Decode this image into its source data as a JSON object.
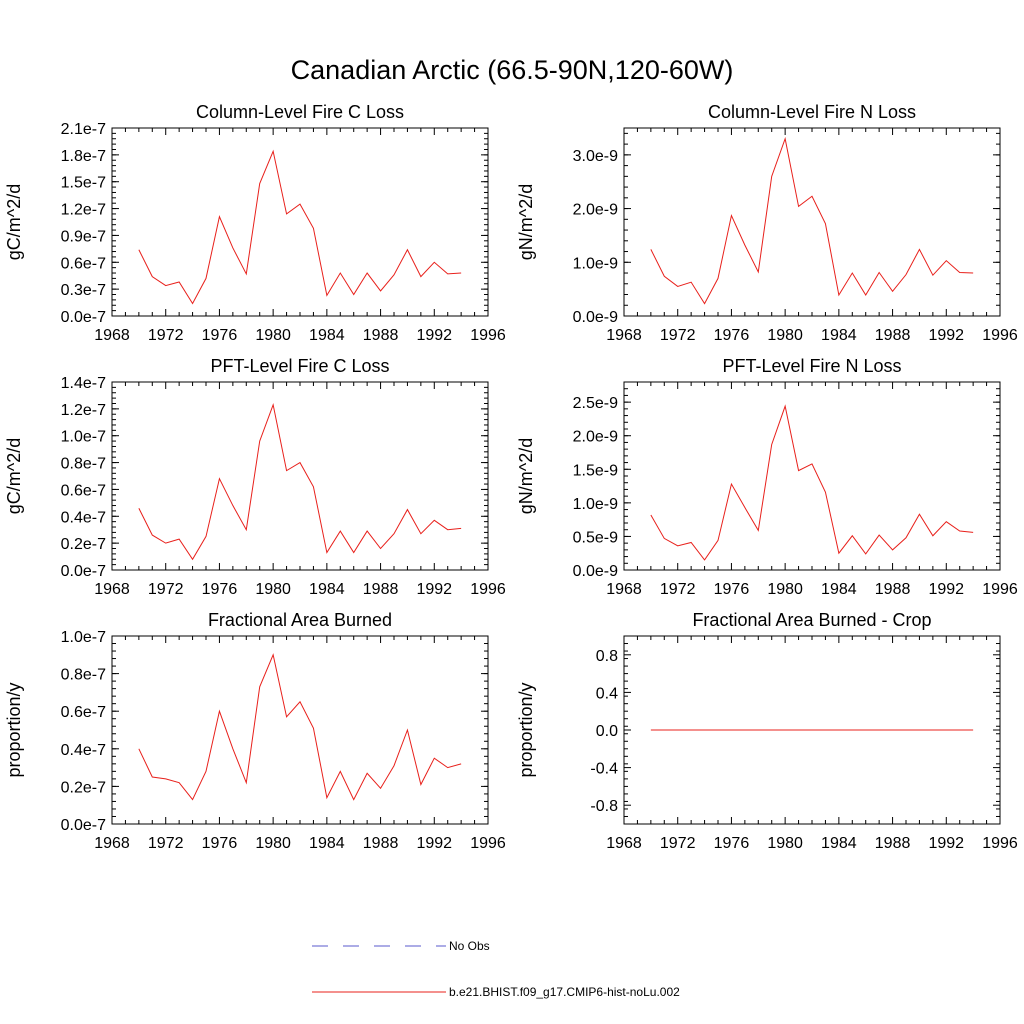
{
  "title": "Canadian Arctic (66.5-90N,120-60W)",
  "colors": {
    "model": "#e8201b",
    "obs": "#5a5acd",
    "axis": "#000000"
  },
  "legend": [
    {
      "label": "No Obs",
      "style": "dashed",
      "color": "#5a5acd"
    },
    {
      "label": "b.e21.BHIST.f09_g17.CMIP6-hist-noLu.002",
      "style": "solid",
      "color": "#e8201b"
    }
  ],
  "chart_data": [
    {
      "type": "line",
      "title": "Column-Level Fire C Loss",
      "ylabel": "gC/m^2/d",
      "xlim": [
        1968,
        1996
      ],
      "xticks": [
        "1968",
        "1972",
        "1976",
        "1980",
        "1984",
        "1988",
        "1992",
        "1996"
      ],
      "ylim": [
        0,
        2.1e-07
      ],
      "yticks": [
        "0.0e-7",
        "0.3e-7",
        "0.6e-7",
        "0.9e-7",
        "1.2e-7",
        "1.5e-7",
        "1.8e-7",
        "2.1e-7"
      ],
      "x": [
        1970,
        1971,
        1972,
        1973,
        1974,
        1975,
        1976,
        1977,
        1978,
        1979,
        1980,
        1981,
        1982,
        1983,
        1984,
        1985,
        1986,
        1987,
        1988,
        1989,
        1990,
        1991,
        1992,
        1993,
        1994
      ],
      "series": [
        {
          "name": "b.e21.BHIST.f09_g17.CMIP6-hist-noLu.002",
          "values": [
            7.4e-08,
            4.4e-08,
            3.4e-08,
            3.8e-08,
            1.4e-08,
            4.2e-08,
            1.11e-07,
            7.6e-08,
            4.7e-08,
            1.48e-07,
            1.84e-07,
            1.14e-07,
            1.25e-07,
            9.8e-08,
            2.3e-08,
            4.8e-08,
            2.4e-08,
            4.8e-08,
            2.8e-08,
            4.6e-08,
            7.4e-08,
            4.4e-08,
            6e-08,
            4.7e-08,
            4.8e-08
          ]
        }
      ]
    },
    {
      "type": "line",
      "title": "Column-Level Fire N Loss",
      "ylabel": "gN/m^2/d",
      "xlim": [
        1968,
        1996
      ],
      "xticks": [
        "1968",
        "1972",
        "1976",
        "1980",
        "1984",
        "1988",
        "1992",
        "1996"
      ],
      "ylim": [
        0,
        3.5e-09
      ],
      "yticks": [
        "0.0e-9",
        "1.0e-9",
        "2.0e-9",
        "3.0e-9"
      ],
      "ytickvals": [
        0,
        1e-09,
        2e-09,
        3e-09
      ],
      "x": [
        1970,
        1971,
        1972,
        1973,
        1974,
        1975,
        1976,
        1977,
        1978,
        1979,
        1980,
        1981,
        1982,
        1983,
        1984,
        1985,
        1986,
        1987,
        1988,
        1989,
        1990,
        1991,
        1992,
        1993,
        1994
      ],
      "series": [
        {
          "name": "b.e21.BHIST.f09_g17.CMIP6-hist-noLu.002",
          "values": [
            1.24e-09,
            7.4e-10,
            5.5e-10,
            6.3e-10,
            2.3e-10,
            7e-10,
            1.87e-09,
            1.32e-09,
            8.2e-10,
            2.6e-09,
            3.3e-09,
            2.04e-09,
            2.23e-09,
            1.72e-09,
            3.9e-10,
            8e-10,
            3.9e-10,
            8.1e-10,
            4.6e-10,
            7.7e-10,
            1.24e-09,
            7.6e-10,
            1.03e-09,
            8.1e-10,
            8e-10
          ]
        }
      ]
    },
    {
      "type": "line",
      "title": "PFT-Level Fire C Loss",
      "ylabel": "gC/m^2/d",
      "xlim": [
        1968,
        1996
      ],
      "xticks": [
        "1968",
        "1972",
        "1976",
        "1980",
        "1984",
        "1988",
        "1992",
        "1996"
      ],
      "ylim": [
        0,
        1.4e-07
      ],
      "yticks": [
        "0.0e-7",
        "0.2e-7",
        "0.4e-7",
        "0.6e-7",
        "0.8e-7",
        "1.0e-7",
        "1.2e-7",
        "1.4e-7"
      ],
      "x": [
        1970,
        1971,
        1972,
        1973,
        1974,
        1975,
        1976,
        1977,
        1978,
        1979,
        1980,
        1981,
        1982,
        1983,
        1984,
        1985,
        1986,
        1987,
        1988,
        1989,
        1990,
        1991,
        1992,
        1993,
        1994
      ],
      "series": [
        {
          "name": "b.e21.BHIST.f09_g17.CMIP6-hist-noLu.002",
          "values": [
            4.6e-08,
            2.6e-08,
            2e-08,
            2.3e-08,
            8e-09,
            2.5e-08,
            6.8e-08,
            4.8e-08,
            3e-08,
            9.6e-08,
            1.23e-07,
            7.4e-08,
            8e-08,
            6.2e-08,
            1.3e-08,
            2.9e-08,
            1.3e-08,
            2.9e-08,
            1.6e-08,
            2.7e-08,
            4.5e-08,
            2.7e-08,
            3.7e-08,
            3e-08,
            3.1e-08
          ]
        }
      ]
    },
    {
      "type": "line",
      "title": "PFT-Level Fire N Loss",
      "ylabel": "gN/m^2/d",
      "xlim": [
        1968,
        1996
      ],
      "xticks": [
        "1968",
        "1972",
        "1976",
        "1980",
        "1984",
        "1988",
        "1992",
        "1996"
      ],
      "ylim": [
        0,
        2.8e-09
      ],
      "yticks": [
        "0.0e-9",
        "0.5e-9",
        "1.0e-9",
        "1.5e-9",
        "2.0e-9",
        "2.5e-9"
      ],
      "ytickvals": [
        0,
        5e-10,
        1e-09,
        1.5e-09,
        2e-09,
        2.5e-09
      ],
      "x": [
        1970,
        1971,
        1972,
        1973,
        1974,
        1975,
        1976,
        1977,
        1978,
        1979,
        1980,
        1981,
        1982,
        1983,
        1984,
        1985,
        1986,
        1987,
        1988,
        1989,
        1990,
        1991,
        1992,
        1993,
        1994
      ],
      "series": [
        {
          "name": "b.e21.BHIST.f09_g17.CMIP6-hist-noLu.002",
          "values": [
            8.2e-10,
            4.7e-10,
            3.6e-10,
            4.1e-10,
            1.5e-10,
            4.4e-10,
            1.28e-09,
            9.3e-10,
            5.9e-10,
            1.87e-09,
            2.44e-09,
            1.48e-09,
            1.58e-09,
            1.16e-09,
            2.5e-10,
            5.1e-10,
            2.4e-10,
            5.2e-10,
            3e-10,
            4.8e-10,
            8.3e-10,
            5.1e-10,
            7.2e-10,
            5.8e-10,
            5.6e-10
          ]
        }
      ]
    },
    {
      "type": "line",
      "title": "Fractional Area Burned",
      "ylabel": "proportion/y",
      "xlim": [
        1968,
        1996
      ],
      "xticks": [
        "1968",
        "1972",
        "1976",
        "1980",
        "1984",
        "1988",
        "1992",
        "1996"
      ],
      "ylim": [
        0,
        1e-07
      ],
      "yticks": [
        "0.0e-7",
        "0.2e-7",
        "0.4e-7",
        "0.6e-7",
        "0.8e-7",
        "1.0e-7"
      ],
      "x": [
        1970,
        1971,
        1972,
        1973,
        1974,
        1975,
        1976,
        1977,
        1978,
        1979,
        1980,
        1981,
        1982,
        1983,
        1984,
        1985,
        1986,
        1987,
        1988,
        1989,
        1990,
        1991,
        1992,
        1993,
        1994
      ],
      "series": [
        {
          "name": "b.e21.BHIST.f09_g17.CMIP6-hist-noLu.002",
          "values": [
            4e-08,
            2.5e-08,
            2.4e-08,
            2.2e-08,
            1.3e-08,
            2.8e-08,
            6e-08,
            4e-08,
            2.2e-08,
            7.3e-08,
            9e-08,
            5.7e-08,
            6.5e-08,
            5.1e-08,
            1.4e-08,
            2.8e-08,
            1.3e-08,
            2.7e-08,
            1.9e-08,
            3.1e-08,
            5e-08,
            2.1e-08,
            3.5e-08,
            3e-08,
            3.2e-08
          ]
        }
      ]
    },
    {
      "type": "line",
      "title": "Fractional Area Burned - Crop",
      "ylabel": "proportion/y",
      "xlim": [
        1968,
        1996
      ],
      "xticks": [
        "1968",
        "1972",
        "1976",
        "1980",
        "1984",
        "1988",
        "1992",
        "1996"
      ],
      "ylim": [
        -1.0,
        1.0
      ],
      "yticks": [
        "-0.8",
        "-0.4",
        "0.0",
        "0.4",
        "0.8"
      ],
      "ytickvals": [
        -0.8,
        -0.4,
        0.0,
        0.4,
        0.8
      ],
      "x": [
        1970,
        1994
      ],
      "series": [
        {
          "name": "b.e21.BHIST.f09_g17.CMIP6-hist-noLu.002",
          "values": [
            0.0,
            0.0
          ]
        }
      ]
    }
  ]
}
